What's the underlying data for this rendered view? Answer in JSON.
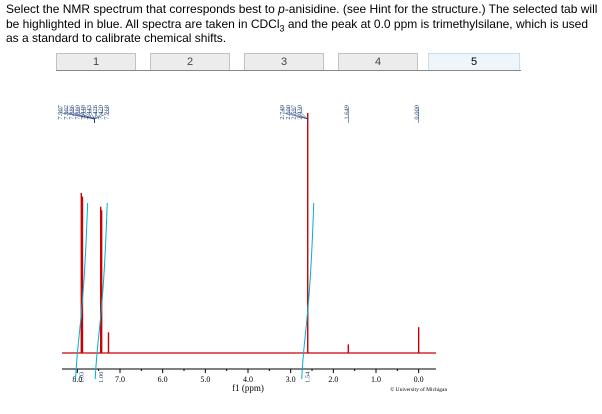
{
  "question": {
    "part1": "Select the NMR spectrum that corresponds best to ",
    "part_italic": "p",
    "part2": "-anisidine. (see Hint for the structure.) The selected tab will be highlighted in blue. All spectra are taken in CDCl",
    "part_sub": "3",
    "part3": " and the peak at 0.0 ppm is trimethylsilane, which is used as a standard to calibrate chemical shifts."
  },
  "tabs": [
    {
      "label": "1",
      "selected": false
    },
    {
      "label": "2",
      "selected": false
    },
    {
      "label": "3",
      "selected": false
    },
    {
      "label": "4",
      "selected": false
    },
    {
      "label": "5",
      "selected": true
    }
  ],
  "chart_data": {
    "type": "line",
    "xlabel": "f1 (ppm)",
    "xlim": [
      8.5,
      -0.5
    ],
    "x_ticks": [
      "8.0",
      "7.0",
      "6.0",
      "5.0",
      "4.0",
      "3.0",
      "2.0",
      "1.0",
      "0.0"
    ],
    "x_tick_values": [
      8.0,
      7.0,
      6.0,
      5.0,
      4.0,
      3.0,
      2.0,
      1.0,
      0.0
    ],
    "series": [
      {
        "color": "#cc0000",
        "peaks": [
          {
            "ppm": 7.907,
            "height": 0.93
          },
          {
            "ppm": 7.88,
            "height": 0.91
          },
          {
            "ppm": 7.452,
            "height": 0.85
          },
          {
            "ppm": 7.43,
            "height": 0.83
          },
          {
            "ppm": 7.27,
            "height": 0.12
          },
          {
            "ppm": 2.6,
            "height": 2.0
          },
          {
            "ppm": 1.649,
            "height": 0.05
          },
          {
            "ppm": 0.0,
            "height": 0.15
          }
        ]
      }
    ],
    "peak_labels_left": [
      "7.907",
      "7.902",
      "7.886",
      "7.880",
      "7.448",
      "7.443",
      "7.426",
      "7.420",
      "7.268"
    ],
    "peak_labels_mid": [
      "2.749",
      "2.600",
      "2.597",
      "2.430"
    ],
    "peak_label_single_1": "1.649",
    "peak_label_single_2": "0.000",
    "integrals": [
      {
        "center": 7.9,
        "label": "1.03"
      },
      {
        "center": 7.44,
        "label": "1.00"
      },
      {
        "center": 2.6,
        "label": "1.54"
      }
    ],
    "line_color": "#cc0000",
    "label_color": "#1f3e7a",
    "integral_color": "#00b0d0",
    "watermark": "© University of Michigan"
  }
}
